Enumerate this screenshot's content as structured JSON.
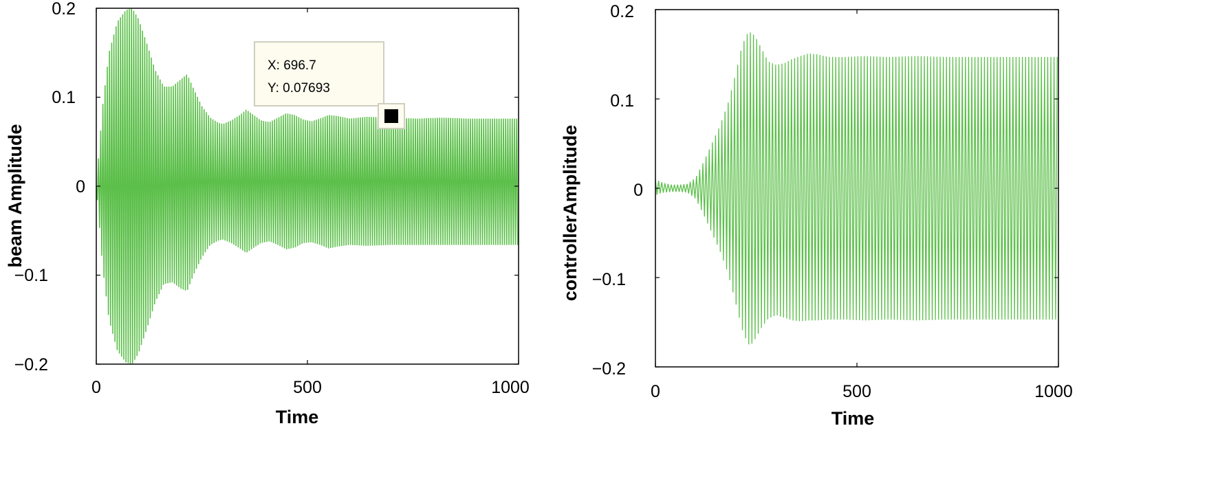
{
  "colors": {
    "series": "#5cbf4a",
    "axes": "#000000",
    "datatip_background": "#fefcef",
    "datatip_border": "#cfcfbf",
    "marker": "#000000"
  },
  "chart_data": [
    {
      "type": "line",
      "series_style": "dense oscillation (filled envelope)",
      "title": "",
      "xlabel": "Time",
      "ylabel": "beam Amplitude",
      "xlim": [
        0,
        1000
      ],
      "ylim": [
        -0.2,
        0.2
      ],
      "xticks": [
        0,
        500,
        1000
      ],
      "yticks": [
        -0.2,
        -0.1,
        0,
        0.1,
        0.2
      ],
      "xtick_labels": [
        "0",
        "500",
        "1000"
      ],
      "ytick_labels": [
        "−0.2",
        "−0.1",
        "0",
        "0.1",
        "0.2"
      ],
      "grid": false,
      "legend": "none",
      "series": [
        {
          "upper_envelope": {
            "x": [
              0,
              5,
              15,
              30,
              50,
              70,
              85,
              100,
              120,
              140,
              160,
              180,
              200,
              215,
              230,
              250,
              270,
              290,
              300,
              320,
              340,
              355,
              370,
              390,
              410,
              430,
              450,
              470,
              490,
              510,
              530,
              550,
              570,
              600,
              640,
              700,
              760,
              820,
              880,
              940,
              1000
            ],
            "y": [
              0.0,
              0.03,
              0.09,
              0.15,
              0.185,
              0.198,
              0.2,
              0.188,
              0.16,
              0.13,
              0.112,
              0.112,
              0.12,
              0.126,
              0.11,
              0.09,
              0.077,
              0.071,
              0.07,
              0.074,
              0.08,
              0.086,
              0.081,
              0.074,
              0.072,
              0.077,
              0.082,
              0.08,
              0.075,
              0.073,
              0.076,
              0.08,
              0.079,
              0.076,
              0.078,
              0.07693,
              0.076,
              0.077,
              0.076,
              0.076,
              0.076
            ]
          },
          "lower_envelope": {
            "x": [
              0,
              5,
              15,
              30,
              50,
              70,
              85,
              100,
              120,
              140,
              160,
              180,
              200,
              215,
              230,
              250,
              270,
              290,
              300,
              320,
              340,
              355,
              370,
              390,
              410,
              430,
              450,
              470,
              490,
              510,
              530,
              550,
              570,
              600,
              640,
              700,
              760,
              820,
              880,
              940,
              1000
            ],
            "y": [
              0.0,
              -0.03,
              -0.09,
              -0.15,
              -0.185,
              -0.198,
              -0.2,
              -0.188,
              -0.16,
              -0.13,
              -0.11,
              -0.108,
              -0.115,
              -0.118,
              -0.1,
              -0.08,
              -0.066,
              -0.061,
              -0.06,
              -0.064,
              -0.07,
              -0.075,
              -0.07,
              -0.064,
              -0.062,
              -0.066,
              -0.071,
              -0.069,
              -0.064,
              -0.063,
              -0.066,
              -0.07,
              -0.068,
              -0.066,
              -0.067,
              -0.066,
              -0.066,
              -0.066,
              -0.066,
              -0.066,
              -0.066
            ]
          }
        }
      ],
      "annotations": [
        {
          "type": "datatip",
          "x": 696.7,
          "y": 0.07693,
          "line1": "X: 696.7",
          "line2": "Y: 0.07693"
        }
      ]
    },
    {
      "type": "line",
      "series_style": "dense oscillation",
      "title": "",
      "xlabel": "Time",
      "ylabel": "controllerAmplitude",
      "xlim": [
        0,
        1000
      ],
      "ylim": [
        -0.2,
        0.2
      ],
      "xticks": [
        0,
        500,
        1000
      ],
      "yticks": [
        -0.2,
        -0.1,
        0,
        0.1,
        0.2
      ],
      "xtick_labels": [
        "0",
        "500",
        "1000"
      ],
      "ytick_labels": [
        "−0.2",
        "−0.1",
        "0",
        "0.1",
        "0.2"
      ],
      "grid": false,
      "legend": "none",
      "series": [
        {
          "upper_envelope": {
            "x": [
              0,
              10,
              20,
              40,
              60,
              80,
              100,
              120,
              140,
              160,
              180,
              200,
              215,
              230,
              240,
              250,
              265,
              280,
              300,
              320,
              340,
              360,
              380,
              400,
              430,
              470,
              520,
              580,
              650,
              720,
              800,
              880,
              960,
              1000
            ],
            "y": [
              0.01,
              0.008,
              0.006,
              0.004,
              0.004,
              0.005,
              0.012,
              0.03,
              0.05,
              0.07,
              0.095,
              0.13,
              0.16,
              0.175,
              0.174,
              0.168,
              0.155,
              0.142,
              0.138,
              0.14,
              0.145,
              0.148,
              0.151,
              0.15,
              0.147,
              0.147,
              0.148,
              0.147,
              0.148,
              0.147,
              0.147,
              0.147,
              0.147,
              0.147
            ]
          },
          "lower_envelope": {
            "x": [
              0,
              10,
              20,
              40,
              60,
              80,
              100,
              120,
              140,
              160,
              180,
              200,
              215,
              230,
              240,
              250,
              265,
              280,
              300,
              320,
              340,
              360,
              380,
              400,
              430,
              470,
              520,
              580,
              650,
              720,
              800,
              880,
              960,
              1000
            ],
            "y": [
              -0.008,
              -0.006,
              -0.005,
              -0.004,
              -0.004,
              -0.005,
              -0.012,
              -0.03,
              -0.05,
              -0.07,
              -0.095,
              -0.13,
              -0.158,
              -0.175,
              -0.174,
              -0.167,
              -0.155,
              -0.146,
              -0.142,
              -0.145,
              -0.148,
              -0.149,
              -0.148,
              -0.148,
              -0.147,
              -0.147,
              -0.148,
              -0.147,
              -0.148,
              -0.147,
              -0.147,
              -0.147,
              -0.147,
              -0.147
            ]
          }
        }
      ]
    }
  ]
}
